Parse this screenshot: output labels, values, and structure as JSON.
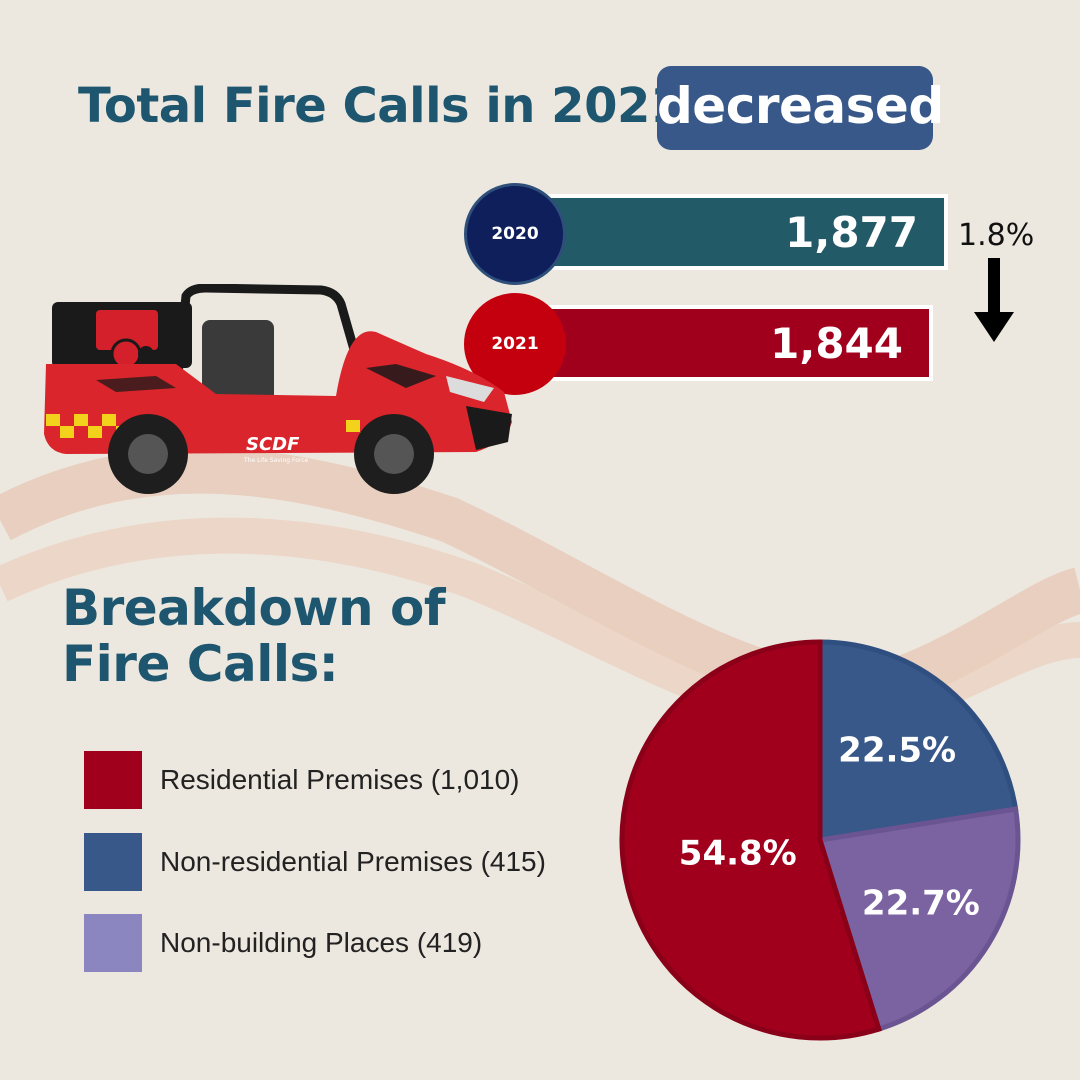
{
  "header": {
    "title": "Total Fire Calls in 2021",
    "highlight": "decreased"
  },
  "comparison": {
    "bars": [
      {
        "year": "2020",
        "value_label": "1,877",
        "value": 1877,
        "bar_color": "#235a68",
        "circle_color": "#0f1f5c"
      },
      {
        "year": "2021",
        "value_label": "1,844",
        "value": 1844,
        "bar_color": "#a0001c",
        "circle_color": "#c4000e"
      }
    ],
    "change_label": "1.8%",
    "change_direction": "down",
    "arrow_icon": "down-arrow-icon"
  },
  "vehicle": {
    "brand_text": "SCDF",
    "tagline": "The Life Saving Force"
  },
  "breakdown": {
    "title": "Breakdown of Fire Calls:",
    "legend": [
      {
        "label": "Residential Premises (1,010)",
        "color": "#a0001c"
      },
      {
        "label": "Non-residential Premises (415)",
        "color": "#375889"
      },
      {
        "label": "Non-building Places (419)",
        "color": "#8c86c0"
      }
    ]
  },
  "chart_data": [
    {
      "type": "bar",
      "categories": [
        "2020",
        "2021"
      ],
      "values": [
        1877,
        1844
      ],
      "title": "Total Fire Calls in 2021 decreased",
      "annotation": "1.8%"
    },
    {
      "type": "pie",
      "title": "Breakdown of Fire Calls:",
      "categories": [
        "Residential Premises (1,010)",
        "Non-residential Premises (415)",
        "Non-building Places (419)"
      ],
      "values": [
        54.8,
        22.5,
        22.7
      ],
      "counts": [
        1010,
        415,
        419
      ],
      "labels": [
        "54.8%",
        "22.5%",
        "22.7%"
      ],
      "colors": [
        "#a0001c",
        "#375889",
        "#7b62a0"
      ]
    }
  ]
}
